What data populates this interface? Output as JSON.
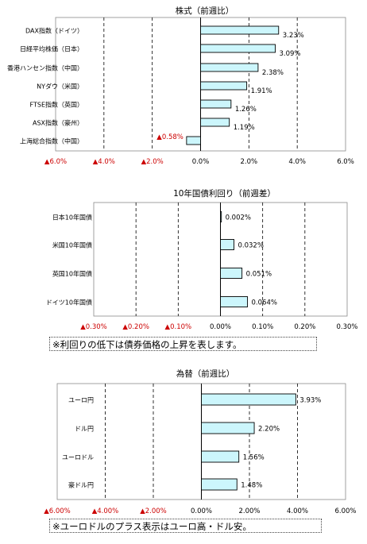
{
  "colors": {
    "bar_fill": "#ccf6fc",
    "bar_stroke": "#000000",
    "grid": "#000000",
    "negative_tick": "#cc0000"
  },
  "notes": {
    "bonds": "※利回りの低下は債券価格の上昇を表します。",
    "fx": "※ユーロドルのプラス表示はユーロ高・ドル安。"
  },
  "chart_data": [
    {
      "type": "bar",
      "orientation": "horizontal",
      "title": "株式（前週比）",
      "categories": [
        "DAX指数（ドイツ）",
        "日経平均株価（日本）",
        "香港ハンセン指数（中国）",
        "NYダウ（米国）",
        "FTSE指数（英国）",
        "ASX指数（豪州）",
        "上海総合指数（中国）"
      ],
      "values": [
        3.23,
        3.09,
        2.38,
        1.91,
        1.26,
        1.19,
        -0.58
      ],
      "value_labels": [
        "3.23%",
        "3.09%",
        "2.38%",
        "1.91%",
        "1.26%",
        "1.19%",
        "▲0.58%"
      ],
      "xlim": [
        -6,
        6
      ],
      "ticks": [
        -6,
        -4,
        -2,
        0,
        2,
        4,
        6
      ],
      "tick_labels": [
        "▲6.0%",
        "▲4.0%",
        "▲2.0%",
        "0.0%",
        "2.0%",
        "4.0%",
        "6.0%"
      ],
      "grid": "vertical dashed"
    },
    {
      "type": "bar",
      "orientation": "horizontal",
      "title": "10年国債利回り（前週差）",
      "categories": [
        "日本10年国債",
        "米国10年国債",
        "英国10年国債",
        "ドイツ10年国債"
      ],
      "values": [
        0.002,
        0.032,
        0.051,
        0.064
      ],
      "value_labels": [
        "0.002%",
        "0.032%",
        "0.051%",
        "0.064%"
      ],
      "xlim": [
        -0.3,
        0.3
      ],
      "ticks": [
        -0.3,
        -0.2,
        -0.1,
        0,
        0.1,
        0.2,
        0.3
      ],
      "tick_labels": [
        "▲0.30%",
        "▲0.20%",
        "▲0.10%",
        "0.00%",
        "0.10%",
        "0.20%",
        "0.30%"
      ],
      "grid": "vertical dashed"
    },
    {
      "type": "bar",
      "orientation": "horizontal",
      "title": "為替（前週比）",
      "categories": [
        "ユーロ円",
        "ドル円",
        "ユーロドル",
        "豪ドル円"
      ],
      "values": [
        3.93,
        2.2,
        1.56,
        1.48
      ],
      "value_labels": [
        "3.93%",
        "2.20%",
        "1.56%",
        "1.48%"
      ],
      "xlim": [
        -6,
        6
      ],
      "ticks": [
        -6,
        -4,
        -2,
        0,
        2,
        4,
        6
      ],
      "tick_labels": [
        "▲6.00%",
        "▲4.00%",
        "▲2.00%",
        "0.00%",
        "2.00%",
        "4.00%",
        "6.00%"
      ],
      "grid": "vertical dashed"
    }
  ]
}
